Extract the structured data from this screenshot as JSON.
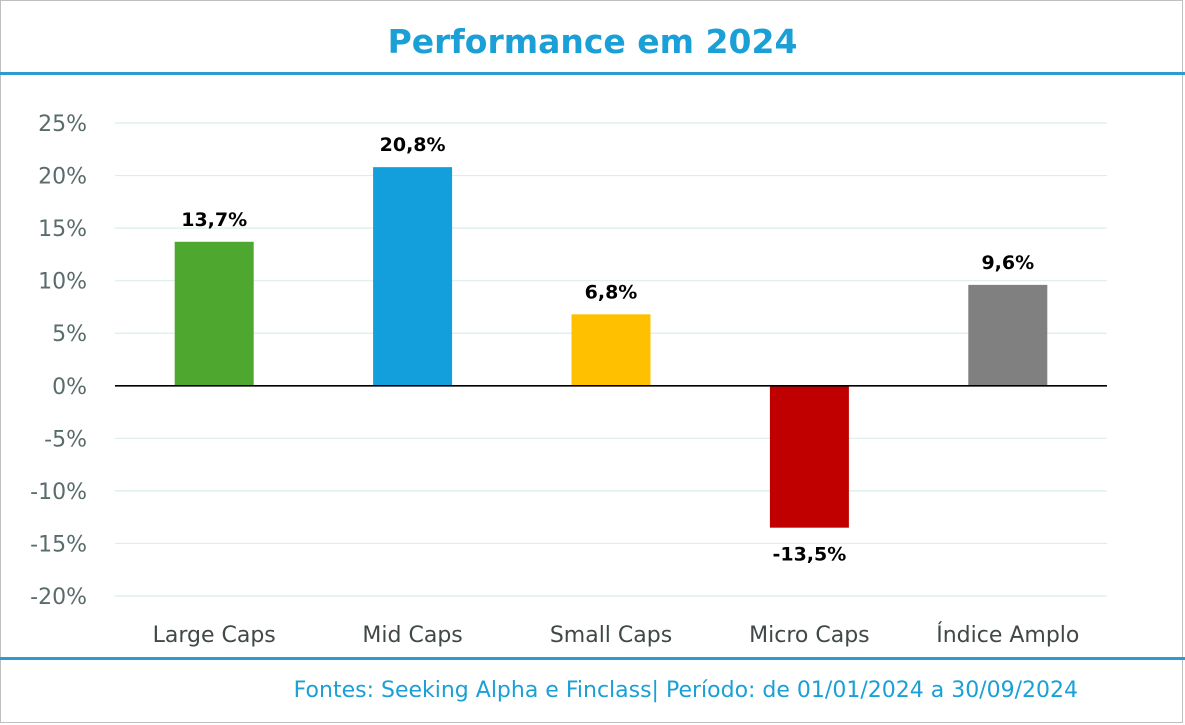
{
  "chart_data": {
    "type": "bar",
    "title": "Performance em 2024",
    "categories": [
      "Large Caps",
      "Mid Caps",
      "Small Caps",
      "Micro Caps",
      "Índice Amplo"
    ],
    "values": [
      13.7,
      20.8,
      6.8,
      -13.5,
      9.6
    ],
    "data_labels": [
      "13,7%",
      "20,8%",
      "6,8%",
      "-13,5%",
      "9,6%"
    ],
    "colors": [
      "#4ea72e",
      "#129fdb",
      "#ffc000",
      "#c00000",
      "#808080"
    ],
    "yticks": [
      25,
      20,
      15,
      10,
      5,
      0,
      -5,
      -10,
      -15,
      -20
    ],
    "ytick_labels": [
      "25%",
      "20%",
      "15%",
      "10%",
      "5%",
      "0%",
      "-5%",
      "-10%",
      "-15%",
      "-20%"
    ],
    "ylim": [
      -20,
      25
    ],
    "grid": true,
    "xlabel": "",
    "ylabel": ""
  },
  "footer": {
    "source": "Fontes: Seeking Alpha e Finclass| Período: de 01/01/2024 a 30/09/2024"
  }
}
